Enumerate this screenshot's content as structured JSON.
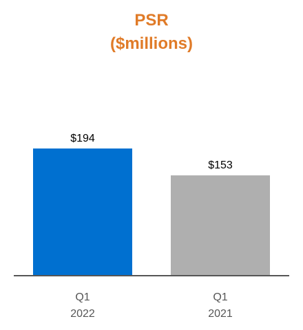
{
  "chart_data": {
    "type": "bar",
    "title": "PSR",
    "subtitle": "($millions)",
    "categories": [
      [
        "Q1",
        "2022"
      ],
      [
        "Q1",
        "2021"
      ]
    ],
    "values": [
      194,
      153
    ],
    "data_labels": [
      "$194",
      "$153"
    ],
    "bar_colors": [
      "#0070D0",
      "#AFAFAF"
    ],
    "axis_color": "#555555",
    "ylim": [
      0,
      194
    ],
    "grid": false,
    "legend": "none"
  }
}
